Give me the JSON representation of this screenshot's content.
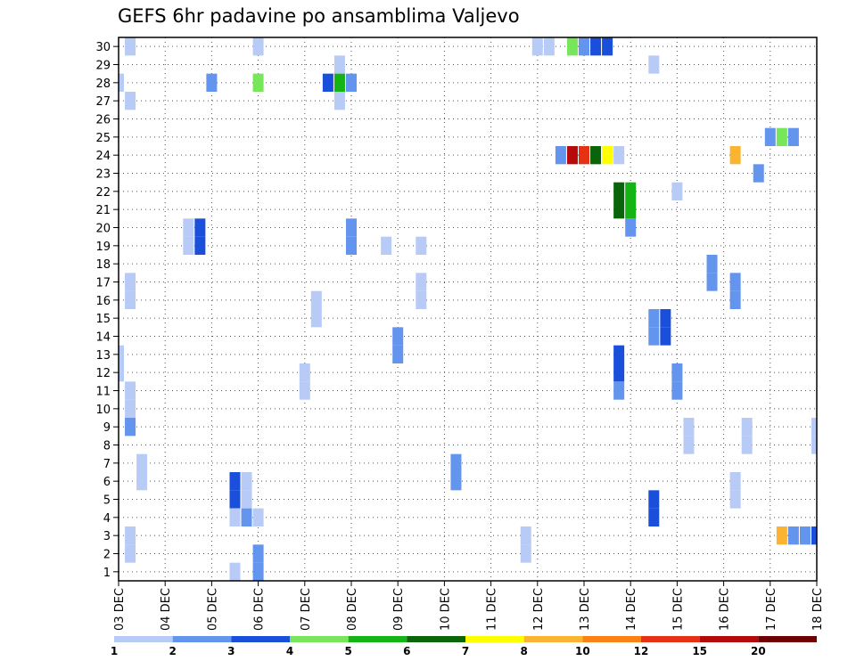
{
  "chart_data": {
    "type": "heatmap",
    "title": "GEFS 6hr padavine po ansamblima Valjevo",
    "xlabel": "",
    "ylabel": "",
    "x_unit": "6-hour step from 03 DEC 00Z",
    "xlim": [
      0,
      60
    ],
    "ylim": [
      0.5,
      30.5
    ],
    "x_ticks": [
      {
        "step": 0,
        "label": "03 DEC"
      },
      {
        "step": 4,
        "label": "04 DEC"
      },
      {
        "step": 8,
        "label": "05 DEC"
      },
      {
        "step": 12,
        "label": "06 DEC"
      },
      {
        "step": 16,
        "label": "07 DEC"
      },
      {
        "step": 20,
        "label": "08 DEC"
      },
      {
        "step": 24,
        "label": "09 DEC"
      },
      {
        "step": 28,
        "label": "10 DEC"
      },
      {
        "step": 32,
        "label": "11 DEC"
      },
      {
        "step": 36,
        "label": "12 DEC"
      },
      {
        "step": 40,
        "label": "13 DEC"
      },
      {
        "step": 44,
        "label": "14 DEC"
      },
      {
        "step": 48,
        "label": "15 DEC"
      },
      {
        "step": 52,
        "label": "16 DEC"
      },
      {
        "step": 56,
        "label": "17 DEC"
      },
      {
        "step": 60,
        "label": "18 DEC"
      }
    ],
    "y_ticks": [
      1,
      2,
      3,
      4,
      5,
      6,
      7,
      8,
      9,
      10,
      11,
      12,
      13,
      14,
      15,
      16,
      17,
      18,
      19,
      20,
      21,
      22,
      23,
      24,
      25,
      26,
      27,
      28,
      29,
      30
    ],
    "colorbar": {
      "labels": [
        "1",
        "2",
        "3",
        "4",
        "5",
        "6",
        "7",
        "8",
        "10",
        "12",
        "15",
        "20"
      ],
      "colors": [
        "#b8cbf7",
        "#6495ee",
        "#1a4fdc",
        "#78e65a",
        "#14b414",
        "#0a640a",
        "#ffff00",
        "#fab432",
        "#fa8214",
        "#e63214",
        "#b40a0a",
        "#6e0000"
      ]
    },
    "cells": [
      {
        "m": 30,
        "x": 1,
        "c": 0
      },
      {
        "m": 30,
        "x": 12,
        "c": 0
      },
      {
        "m": 30,
        "x": 36,
        "c": 0
      },
      {
        "m": 30,
        "x": 37,
        "c": 0
      },
      {
        "m": 30,
        "x": 39,
        "c": 3
      },
      {
        "m": 30,
        "x": 40,
        "c": 1
      },
      {
        "m": 30,
        "x": 41,
        "c": 2
      },
      {
        "m": 30,
        "x": 42,
        "c": 2
      },
      {
        "m": 29,
        "x": 19,
        "c": 0
      },
      {
        "m": 29,
        "x": 46,
        "c": 0
      },
      {
        "m": 28,
        "x": 0,
        "c": 0
      },
      {
        "m": 28,
        "x": 8,
        "c": 1
      },
      {
        "m": 28,
        "x": 12,
        "c": 3
      },
      {
        "m": 28,
        "x": 18,
        "c": 2
      },
      {
        "m": 28,
        "x": 19,
        "c": 4
      },
      {
        "m": 28,
        "x": 20,
        "c": 1
      },
      {
        "m": 27,
        "x": 1,
        "c": 0
      },
      {
        "m": 27,
        "x": 19,
        "c": 0
      },
      {
        "m": 25,
        "x": 56,
        "c": 1
      },
      {
        "m": 25,
        "x": 57,
        "c": 3
      },
      {
        "m": 25,
        "x": 58,
        "c": 1
      },
      {
        "m": 24,
        "x": 38,
        "c": 1
      },
      {
        "m": 24,
        "x": 39,
        "c": 10
      },
      {
        "m": 24,
        "x": 40,
        "c": 9
      },
      {
        "m": 24,
        "x": 41,
        "c": 5
      },
      {
        "m": 24,
        "x": 42,
        "c": 6
      },
      {
        "m": 24,
        "x": 43,
        "c": 0
      },
      {
        "m": 24,
        "x": 53,
        "c": 7
      },
      {
        "m": 23,
        "x": 55,
        "c": 1
      },
      {
        "m": 22,
        "x": 43,
        "c": 5
      },
      {
        "m": 22,
        "x": 44,
        "c": 4
      },
      {
        "m": 22,
        "x": 48,
        "c": 0
      },
      {
        "m": 21,
        "x": 43,
        "c": 5
      },
      {
        "m": 21,
        "x": 44,
        "c": 4
      },
      {
        "m": 20,
        "x": 44,
        "c": 1
      },
      {
        "m": 20,
        "x": 6,
        "c": 0
      },
      {
        "m": 20,
        "x": 7,
        "c": 2
      },
      {
        "m": 20,
        "x": 20,
        "c": 1
      },
      {
        "m": 19,
        "x": 6,
        "c": 0
      },
      {
        "m": 19,
        "x": 7,
        "c": 2
      },
      {
        "m": 19,
        "x": 20,
        "c": 1
      },
      {
        "m": 19,
        "x": 23,
        "c": 0
      },
      {
        "m": 19,
        "x": 26,
        "c": 0
      },
      {
        "m": 18,
        "x": 51,
        "c": 1
      },
      {
        "m": 17,
        "x": 51,
        "c": 1
      },
      {
        "m": 17,
        "x": 1,
        "c": 0
      },
      {
        "m": 17,
        "x": 26,
        "c": 0
      },
      {
        "m": 17,
        "x": 53,
        "c": 1
      },
      {
        "m": 16,
        "x": 1,
        "c": 0
      },
      {
        "m": 16,
        "x": 26,
        "c": 0
      },
      {
        "m": 16,
        "x": 53,
        "c": 1
      },
      {
        "m": 16,
        "x": 17,
        "c": 0
      },
      {
        "m": 15,
        "x": 17,
        "c": 0
      },
      {
        "m": 14,
        "x": 46,
        "c": 1
      },
      {
        "m": 14,
        "x": 47,
        "c": 2
      },
      {
        "m": 15,
        "x": 46,
        "c": 1
      },
      {
        "m": 15,
        "x": 47,
        "c": 2
      },
      {
        "m": 14,
        "x": 24,
        "c": 1
      },
      {
        "m": 13,
        "x": 24,
        "c": 1
      },
      {
        "m": 13,
        "x": 0,
        "c": 0
      },
      {
        "m": 12,
        "x": 0,
        "c": 0
      },
      {
        "m": 12,
        "x": 43,
        "c": 2
      },
      {
        "m": 13,
        "x": 43,
        "c": 2
      },
      {
        "m": 11,
        "x": 43,
        "c": 1
      },
      {
        "m": 11,
        "x": 16,
        "c": 0
      },
      {
        "m": 11,
        "x": 48,
        "c": 1
      },
      {
        "m": 12,
        "x": 16,
        "c": 0
      },
      {
        "m": 12,
        "x": 48,
        "c": 1
      },
      {
        "m": 11,
        "x": 1,
        "c": 0
      },
      {
        "m": 10,
        "x": 1,
        "c": 0
      },
      {
        "m": 9,
        "x": 1,
        "c": 1
      },
      {
        "m": 8,
        "x": 49,
        "c": 0
      },
      {
        "m": 8,
        "x": 54,
        "c": 0
      },
      {
        "m": 8,
        "x": 60,
        "c": 0
      },
      {
        "m": 9,
        "x": 49,
        "c": 0
      },
      {
        "m": 9,
        "x": 54,
        "c": 0
      },
      {
        "m": 9,
        "x": 60,
        "c": 0
      },
      {
        "m": 6,
        "x": 2,
        "c": 0
      },
      {
        "m": 6,
        "x": 29,
        "c": 1
      },
      {
        "m": 7,
        "x": 2,
        "c": 0
      },
      {
        "m": 7,
        "x": 29,
        "c": 1
      },
      {
        "m": 5,
        "x": 10,
        "c": 2
      },
      {
        "m": 5,
        "x": 11,
        "c": 0
      },
      {
        "m": 5,
        "x": 53,
        "c": 0
      },
      {
        "m": 6,
        "x": 10,
        "c": 2
      },
      {
        "m": 6,
        "x": 11,
        "c": 0
      },
      {
        "m": 6,
        "x": 53,
        "c": 0
      },
      {
        "m": 4,
        "x": 10,
        "c": 0
      },
      {
        "m": 4,
        "x": 11,
        "c": 1
      },
      {
        "m": 4,
        "x": 12,
        "c": 0
      },
      {
        "m": 4,
        "x": 46,
        "c": 2
      },
      {
        "m": 5,
        "x": 46,
        "c": 2
      },
      {
        "m": 3,
        "x": 57,
        "c": 7
      },
      {
        "m": 3,
        "x": 58,
        "c": 1
      },
      {
        "m": 3,
        "x": 59,
        "c": 1
      },
      {
        "m": 3,
        "x": 60,
        "c": 2
      },
      {
        "m": 2,
        "x": 1,
        "c": 0
      },
      {
        "m": 2,
        "x": 35,
        "c": 0
      },
      {
        "m": 3,
        "x": 1,
        "c": 0
      },
      {
        "m": 3,
        "x": 35,
        "c": 0
      },
      {
        "m": 1,
        "x": 10,
        "c": 0
      },
      {
        "m": 1,
        "x": 12,
        "c": 1
      },
      {
        "m": 2,
        "x": 12,
        "c": 1
      }
    ]
  }
}
